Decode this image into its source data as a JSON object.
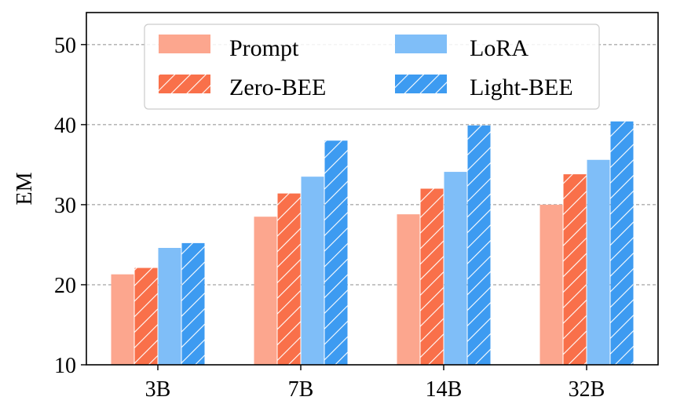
{
  "chart_data": {
    "type": "bar",
    "title": "",
    "xlabel": "",
    "ylabel": "EM",
    "ylim": [
      10,
      54
    ],
    "yticks": [
      10,
      20,
      30,
      40,
      50
    ],
    "grid": "y-dashed",
    "legend_position": "top",
    "categories": [
      "3B",
      "7B",
      "14B",
      "32B"
    ],
    "series": [
      {
        "name": "Prompt",
        "values": [
          21.3,
          28.5,
          28.8,
          30.0
        ],
        "color": "#FCA68E",
        "hatch": false
      },
      {
        "name": "Zero-BEE",
        "values": [
          22.1,
          31.4,
          32.0,
          33.8
        ],
        "color": "#F9704A",
        "hatch": true
      },
      {
        "name": "LoRA",
        "values": [
          24.6,
          33.5,
          34.1,
          35.6
        ],
        "color": "#7FBEF8",
        "hatch": false
      },
      {
        "name": "Light-BEE",
        "values": [
          25.2,
          38.0,
          39.9,
          40.4
        ],
        "color": "#3D9BF1",
        "hatch": true
      }
    ]
  }
}
